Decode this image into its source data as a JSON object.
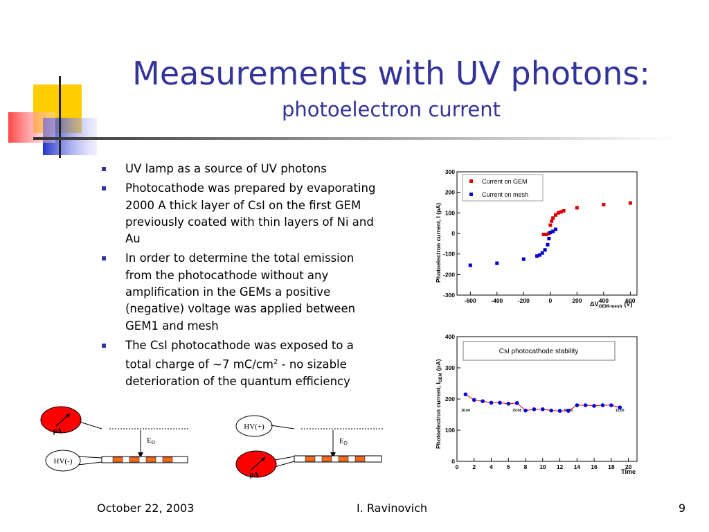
{
  "slide": {
    "title": "Measurements with UV photons:",
    "subtitle": "photoelectron current",
    "colors": {
      "title": "#333399",
      "accent_yellow": "#ffcc00",
      "accent_blue": "#3333cc",
      "accent_red": "#ff3333"
    }
  },
  "bullets": [
    {
      "text": "UV lamp as a source of UV photons"
    },
    {
      "text": "Photocathode was prepared by evaporating 2000 A thick layer of CsI on the first GEM previously coated with thin layers of Ni and Au"
    },
    {
      "text": "In order to determine the total emission from the photocathode without any amplification in the GEMs a positive (negative) voltage was applied between GEM1 and mesh"
    },
    {
      "text": "The CsI photocathode was exposed to a total charge of ~7 mC/cm",
      "sup": "2",
      "tail": " - no sizable deterioration of the quantum efficiency"
    }
  ],
  "diagrams": {
    "left": {
      "meter": "pA",
      "hv": "HV(-)",
      "field": "E",
      "field_sub": "D"
    },
    "right": {
      "meter": "pA",
      "hv": "HV(+)",
      "field": "E",
      "field_sub": "D"
    }
  },
  "chart_data": [
    {
      "type": "scatter",
      "ylabel": "Photoelectron current,  I (pA)",
      "xlabel": "ΔV",
      "xlabel_sub": "GEM-mesh",
      "xlabel_unit": "(V)",
      "xlim": [
        -700,
        650
      ],
      "ylim": [
        -300,
        300
      ],
      "xticks": [
        -600,
        -400,
        -200,
        0,
        200,
        400,
        600
      ],
      "yticks": [
        -300,
        -200,
        -100,
        0,
        100,
        200,
        300
      ],
      "legend_position": "top-left",
      "series": [
        {
          "name": "Current on GEM",
          "color": "#dd0000",
          "x": [
            -50,
            -30,
            -10,
            0,
            10,
            20,
            40,
            60,
            80,
            100,
            200,
            400,
            600
          ],
          "y": [
            -5,
            -5,
            0,
            40,
            60,
            75,
            90,
            100,
            105,
            110,
            125,
            140,
            148
          ]
        },
        {
          "name": "Current on mesh",
          "color": "#0000cc",
          "x": [
            -600,
            -400,
            -200,
            -100,
            -80,
            -60,
            -40,
            -20,
            -10,
            0,
            20,
            40
          ],
          "y": [
            -155,
            -145,
            -125,
            -110,
            -105,
            -95,
            -80,
            -55,
            -25,
            5,
            10,
            20
          ]
        }
      ]
    },
    {
      "type": "line",
      "title": "CsI photocathode stability",
      "ylabel": "Photoelectron current,  I",
      "ylabel_sub": "GEM",
      "ylabel_unit": "(pA)",
      "xlabel": "Time",
      "xlim": [
        0,
        21
      ],
      "ylim": [
        0,
        400
      ],
      "xticks": [
        0,
        2,
        4,
        6,
        8,
        10,
        12,
        14,
        16,
        18,
        20
      ],
      "yticks": [
        0,
        100,
        200,
        300,
        400
      ],
      "annotations": [
        {
          "text": "16.04",
          "x": 1
        },
        {
          "text": "29.04",
          "x": 7
        },
        {
          "text": "06.05",
          "x": 13
        },
        {
          "text": "12.05",
          "x": 19
        }
      ],
      "series": [
        {
          "color": "#0000dd",
          "line_color": "#ee0000",
          "x": [
            1,
            2,
            3,
            4,
            5,
            6,
            7,
            8,
            9,
            10,
            11,
            12,
            13,
            14,
            15,
            16,
            17,
            18,
            19
          ],
          "y": [
            215,
            197,
            193,
            188,
            188,
            185,
            187,
            163,
            167,
            167,
            163,
            162,
            162,
            180,
            180,
            178,
            180,
            180,
            173
          ]
        }
      ]
    }
  ],
  "footer": {
    "date": "October 22, 2003",
    "author": "I. Ravinovich",
    "page": "9"
  }
}
